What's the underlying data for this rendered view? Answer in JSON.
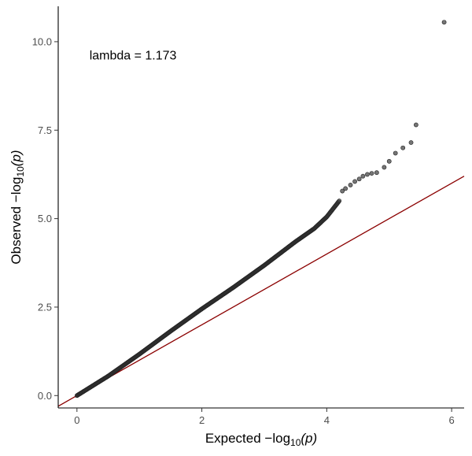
{
  "chart_data": {
    "type": "scatter",
    "title": "",
    "xlabel_prefix": "Expected  −log",
    "xlabel_sub": "10",
    "xlabel_arg": "(p)",
    "ylabel_prefix": "Observed  −log",
    "ylabel_sub": "10",
    "ylabel_arg": "(p)",
    "annotation": "lambda = 1.173",
    "annotation_pos": [
      0.2,
      9.5
    ],
    "xlim": [
      -0.3,
      6.2
    ],
    "ylim": [
      -0.35,
      11.0
    ],
    "x_ticks": [
      0,
      2,
      4,
      6
    ],
    "x_tick_labels": [
      "0",
      "2",
      "4",
      "6"
    ],
    "y_ticks": [
      0.0,
      2.5,
      5.0,
      7.5,
      10.0
    ],
    "y_tick_labels": [
      "0.0",
      "2.5",
      "5.0",
      "7.5",
      "10.0"
    ],
    "grid": false,
    "reference_line": {
      "slope": 1,
      "intercept": 0,
      "color": "#8b0000"
    },
    "point_color": "#3a3a3a",
    "bulk_trend": {
      "x": [
        0,
        0.5,
        1.0,
        1.5,
        2.0,
        2.5,
        3.0,
        3.5,
        3.8,
        4.0,
        4.2
      ],
      "y": [
        0,
        0.55,
        1.17,
        1.82,
        2.45,
        3.05,
        3.68,
        4.35,
        4.72,
        5.05,
        5.5
      ]
    },
    "tail_points": [
      [
        4.25,
        5.78
      ],
      [
        4.3,
        5.85
      ],
      [
        4.38,
        5.95
      ],
      [
        4.45,
        6.05
      ],
      [
        4.52,
        6.12
      ],
      [
        4.58,
        6.2
      ],
      [
        4.65,
        6.25
      ],
      [
        4.72,
        6.28
      ],
      [
        4.8,
        6.3
      ],
      [
        4.92,
        6.45
      ],
      [
        5.0,
        6.62
      ],
      [
        5.1,
        6.85
      ],
      [
        5.22,
        7.0
      ],
      [
        5.35,
        7.15
      ],
      [
        5.43,
        7.65
      ],
      [
        5.88,
        10.55
      ]
    ]
  }
}
